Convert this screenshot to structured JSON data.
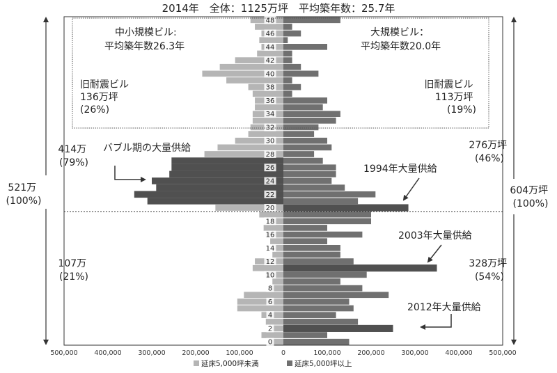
{
  "chart_data": {
    "type": "bar",
    "orientation": "horizontal-pyramid",
    "title": "2014年　全体：1125万坪　平均築年数：25.7年",
    "x_axis": {
      "ticks": [
        "500,000",
        "400,000",
        "300,000",
        "200,000",
        "100,000",
        "0",
        "100,000",
        "200,000",
        "300,000",
        "400,000",
        "500,000"
      ],
      "xlim": [
        -500000,
        500000
      ]
    },
    "y_axis": {
      "tick_labels": [
        "0",
        "2",
        "4",
        "6",
        "8",
        "10",
        "12",
        "14",
        "16",
        "18",
        "20",
        "22",
        "24",
        "26",
        "28",
        "30",
        "32",
        "34",
        "36",
        "38",
        "40",
        "42",
        "44",
        "46",
        "48"
      ],
      "ylim": [
        0,
        49
      ]
    },
    "legend": {
      "position": "bottom",
      "items": [
        "延床5,000坪未満",
        "延床5,000坪以上"
      ],
      "colors": [
        "#b5b5b5",
        "#707070"
      ]
    },
    "emphasis_color": "#505050",
    "age": [
      0,
      1,
      2,
      3,
      4,
      5,
      6,
      7,
      8,
      9,
      10,
      11,
      12,
      13,
      14,
      15,
      16,
      17,
      18,
      19,
      20,
      21,
      22,
      23,
      24,
      25,
      26,
      27,
      28,
      29,
      30,
      31,
      32,
      33,
      34,
      35,
      36,
      37,
      38,
      39,
      40,
      41,
      42,
      43,
      44,
      45,
      46,
      47,
      48
    ],
    "series": [
      {
        "name": "延床5,000坪未満",
        "values": [
          30000,
          50000,
          25000,
          40000,
          50000,
          105000,
          105000,
          90000,
          30000,
          25000,
          40000,
          70000,
          65000,
          25000,
          20000,
          30000,
          40000,
          45000,
          30000,
          55000,
          155000,
          310000,
          340000,
          290000,
          300000,
          260000,
          255000,
          255000,
          180000,
          150000,
          110000,
          80000,
          75000,
          70000,
          70000,
          65000,
          65000,
          70000,
          80000,
          130000,
          185000,
          145000,
          110000,
          60000,
          50000,
          55000,
          50000,
          65000,
          75000
        ],
        "emphasis": [
          false,
          false,
          false,
          false,
          false,
          false,
          false,
          false,
          false,
          false,
          false,
          false,
          false,
          false,
          false,
          false,
          false,
          false,
          false,
          false,
          false,
          true,
          true,
          true,
          true,
          true,
          true,
          true,
          false,
          false,
          false,
          false,
          false,
          false,
          false,
          false,
          false,
          false,
          false,
          false,
          false,
          false,
          false,
          false,
          false,
          false,
          false,
          false,
          false
        ]
      },
      {
        "name": "延床5,000坪以上",
        "values": [
          150000,
          100000,
          250000,
          170000,
          120000,
          160000,
          150000,
          240000,
          180000,
          130000,
          190000,
          350000,
          160000,
          130000,
          130000,
          100000,
          180000,
          100000,
          200000,
          200000,
          285000,
          170000,
          210000,
          140000,
          110000,
          120000,
          120000,
          90000,
          70000,
          110000,
          100000,
          70000,
          80000,
          120000,
          130000,
          90000,
          100000,
          20000,
          40000,
          20000,
          80000,
          40000,
          20000,
          20000,
          100000,
          10000,
          40000,
          20000,
          130000
        ],
        "emphasis": [
          false,
          false,
          true,
          false,
          false,
          false,
          false,
          false,
          false,
          false,
          false,
          true,
          false,
          false,
          false,
          false,
          false,
          false,
          false,
          false,
          true,
          false,
          false,
          false,
          false,
          false,
          false,
          false,
          false,
          false,
          false,
          false,
          false,
          false,
          false,
          false,
          false,
          false,
          false,
          false,
          false,
          false,
          false,
          false,
          false,
          false,
          false,
          false,
          false
        ]
      }
    ],
    "annotations": {
      "small_bldg": [
        "中小規模ビル:",
        "平均築年数26.3年"
      ],
      "large_bldg": [
        "大規模ビル：",
        "平均築年数20.0年"
      ],
      "old_small": [
        "旧耐震ビル",
        "136万坪",
        "(26%)"
      ],
      "old_large": [
        "旧耐震ビル",
        "113万坪",
        "(19%)"
      ],
      "bubble": "バブル期の大量供給",
      "supply_1994": "1994年大量供給",
      "supply_2003": "2003年大量供給",
      "supply_2012": "2012年大量供給",
      "left_upper": [
        "414万",
        "(79%)"
      ],
      "left_lower": [
        "107万",
        "(21%)"
      ],
      "left_total": [
        "521万",
        "(100%)"
      ],
      "right_upper": [
        "276万坪",
        "(46%)"
      ],
      "right_lower": [
        "328万坪",
        "(54%)"
      ],
      "right_total": [
        "604万坪",
        "(100%)"
      ]
    }
  }
}
